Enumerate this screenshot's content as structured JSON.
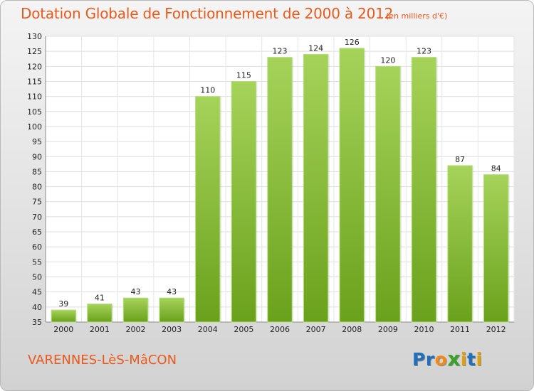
{
  "header": {
    "title": "Dotation Globale de Fonctionnement de 2000 à 2012",
    "unit": "(en milliers d'€)"
  },
  "footer": {
    "commune": "VARENNES-LèS-MâCON",
    "logo_letters": [
      "P",
      "r",
      "o",
      "x",
      "i",
      "t",
      "i"
    ]
  },
  "colors": {
    "accent": "#e85a1c",
    "bar_light": "#a6d35a",
    "bar_dark": "#6aa11c",
    "logo_letters": [
      "#1f6fb9",
      "#1f6fb9",
      "#f08a1a",
      "#3aa12b",
      "#e3a000",
      "#1f6fb9",
      "#e3a000"
    ]
  },
  "chart_data": {
    "type": "bar",
    "categories": [
      "2000",
      "2001",
      "2002",
      "2003",
      "2004",
      "2005",
      "2006",
      "2007",
      "2008",
      "2009",
      "2010",
      "2011",
      "2012"
    ],
    "values": [
      39,
      41,
      43,
      43,
      110,
      115,
      123,
      124,
      126,
      120,
      123,
      87,
      84
    ],
    "value_labels": [
      "39",
      "41",
      "43",
      "43",
      "110",
      "115",
      "123",
      "124",
      "126",
      "120",
      "123",
      "87",
      "84"
    ],
    "title": "Dotation Globale de Fonctionnement de 2000 à 2012",
    "ylim": [
      35,
      130
    ],
    "yticks": [
      35,
      40,
      45,
      50,
      55,
      60,
      65,
      70,
      75,
      80,
      85,
      90,
      95,
      100,
      105,
      110,
      115,
      120,
      125,
      130
    ],
    "grid": true
  }
}
